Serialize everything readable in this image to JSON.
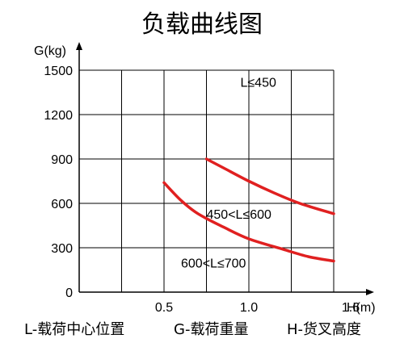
{
  "chart_data": {
    "type": "line",
    "title": "负载曲线图",
    "ylabel": "G(kg)",
    "xlabel": "H(m)",
    "x_ticks": [
      {
        "value": 0.5,
        "label": "0.5"
      },
      {
        "value": 1.0,
        "label": "1.0"
      },
      {
        "value": 1.6,
        "label": "1.6"
      }
    ],
    "y_ticks": [
      {
        "value": 0,
        "label": "0"
      },
      {
        "value": 300,
        "label": "300"
      },
      {
        "value": 600,
        "label": "600"
      },
      {
        "value": 900,
        "label": "900"
      },
      {
        "value": 1200,
        "label": "1200"
      },
      {
        "value": 1500,
        "label": "1500"
      }
    ],
    "xlim": [
      0,
      1.5
    ],
    "ylim": [
      0,
      1500
    ],
    "grid": true,
    "line_color": "#e02020",
    "series": [
      {
        "name": "450<L≤600",
        "points": [
          [
            0.75,
            900
          ],
          [
            0.85,
            840
          ],
          [
            1.0,
            750
          ],
          [
            1.15,
            670
          ],
          [
            1.3,
            600
          ],
          [
            1.5,
            530
          ]
        ]
      },
      {
        "name": "600<L≤700",
        "points": [
          [
            0.5,
            740
          ],
          [
            0.6,
            620
          ],
          [
            0.7,
            530
          ],
          [
            0.85,
            440
          ],
          [
            1.0,
            360
          ],
          [
            1.2,
            290
          ],
          [
            1.35,
            240
          ],
          [
            1.5,
            210
          ]
        ]
      }
    ],
    "annotations": [
      {
        "text": "L≤450",
        "x": 0.95,
        "y": 1420
      },
      {
        "text": "450<L≤600",
        "x": 0.75,
        "y": 530
      },
      {
        "text": "600<L≤700",
        "x": 0.6,
        "y": 200
      }
    ],
    "legend": [
      "L-载荷中心位置",
      "G-载荷重量",
      "H-货叉高度"
    ]
  }
}
